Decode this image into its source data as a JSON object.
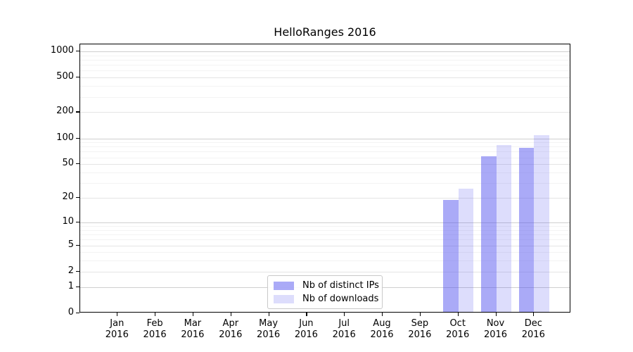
{
  "title": "HelloRanges 2016",
  "accent_color": "#5555F0",
  "legend": {
    "position": "lower center",
    "items": [
      {
        "label": "Nb of distinct IPs",
        "swatch_color": "#5555F0",
        "swatch_opacity": 0.5
      },
      {
        "label": "Nb of downloads",
        "swatch_color": "#5555F0",
        "swatch_opacity": 0.2
      }
    ]
  },
  "chart_data": {
    "type": "bar",
    "title": "HelloRanges 2016",
    "categories": [
      "Jan 2016",
      "Feb 2016",
      "Mar 2016",
      "Apr 2016",
      "May 2016",
      "Jun 2016",
      "Jul 2016",
      "Aug 2016",
      "Sep 2016",
      "Oct 2016",
      "Nov 2016",
      "Dec 2016"
    ],
    "x_tick_months": [
      "Jan",
      "Feb",
      "Mar",
      "Apr",
      "May",
      "Jun",
      "Jul",
      "Aug",
      "Sep",
      "Oct",
      "Nov",
      "Dec"
    ],
    "x_tick_year": "2016",
    "series": [
      {
        "name": "Nb of distinct IPs",
        "color": "#5555F0",
        "opacity": 0.5,
        "values": [
          0,
          0,
          0,
          0,
          0,
          0,
          0,
          0,
          0,
          18,
          60,
          75
        ]
      },
      {
        "name": "Nb of downloads",
        "color": "#5555F0",
        "opacity": 0.2,
        "values": [
          0,
          0,
          0,
          0,
          0,
          0,
          0,
          0,
          0,
          25,
          80,
          105
        ]
      }
    ],
    "xlabel": "",
    "ylabel": "",
    "y_scale": "log1p",
    "ylim": [
      0,
      1200
    ],
    "y_ticks": [
      0,
      1,
      2,
      5,
      10,
      20,
      50,
      100,
      200,
      500,
      1000
    ],
    "y_decade_ticks": [
      1,
      10,
      100,
      1000
    ],
    "y_minor_gridlines": [
      3,
      4,
      6,
      7,
      8,
      9,
      30,
      40,
      60,
      70,
      80,
      90,
      300,
      400,
      600,
      700,
      800,
      900
    ],
    "grid": true,
    "gridline_color_major": "#cfcfcf",
    "gridline_color_mid": "#e4e4e4",
    "gridline_color_minor": "#f3f3f3"
  }
}
